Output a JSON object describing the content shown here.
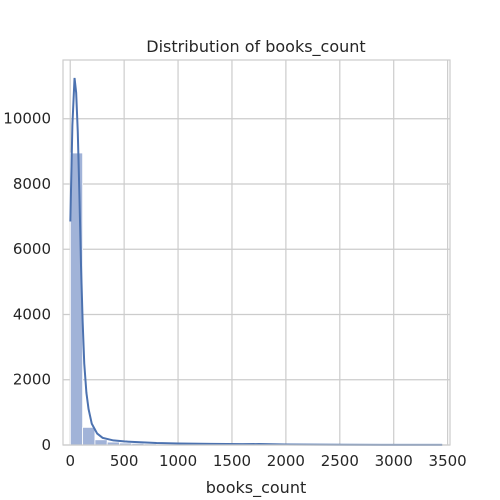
{
  "chart_data": {
    "type": "bar",
    "title": "Distribution of books_count",
    "xlabel": "books_count",
    "ylabel": "",
    "xlim": [
      -67,
      3522
    ],
    "ylim": [
      0,
      11800
    ],
    "xticks": [
      0,
      500,
      1000,
      1500,
      2000,
      2500,
      3000,
      3500
    ],
    "yticks": [
      0,
      2000,
      4000,
      6000,
      8000,
      10000
    ],
    "grid": true,
    "bin_width": 114,
    "bins": [
      {
        "x0": 1,
        "count": 8950
      },
      {
        "x0": 115,
        "count": 540
      },
      {
        "x0": 229,
        "count": 160
      },
      {
        "x0": 343,
        "count": 90
      },
      {
        "x0": 457,
        "count": 60
      },
      {
        "x0": 571,
        "count": 50
      },
      {
        "x0": 685,
        "count": 35
      },
      {
        "x0": 799,
        "count": 25
      },
      {
        "x0": 913,
        "count": 20
      },
      {
        "x0": 1027,
        "count": 15
      },
      {
        "x0": 1141,
        "count": 15
      },
      {
        "x0": 1255,
        "count": 12
      },
      {
        "x0": 1369,
        "count": 10
      },
      {
        "x0": 1483,
        "count": 8
      },
      {
        "x0": 1597,
        "count": 6
      },
      {
        "x0": 1711,
        "count": 20
      },
      {
        "x0": 1825,
        "count": 8
      },
      {
        "x0": 1939,
        "count": 5
      },
      {
        "x0": 2053,
        "count": 4
      },
      {
        "x0": 2167,
        "count": 3
      },
      {
        "x0": 2281,
        "count": 3
      },
      {
        "x0": 2395,
        "count": 2
      },
      {
        "x0": 2509,
        "count": 2
      },
      {
        "x0": 2623,
        "count": 2
      },
      {
        "x0": 2737,
        "count": 1
      },
      {
        "x0": 2851,
        "count": 1
      },
      {
        "x0": 2965,
        "count": 1
      },
      {
        "x0": 3079,
        "count": 1
      },
      {
        "x0": 3193,
        "count": 1
      },
      {
        "x0": 3307,
        "count": 1
      }
    ],
    "kde": {
      "x": [
        1,
        20,
        40,
        55,
        70,
        85,
        100,
        115,
        130,
        150,
        170,
        200,
        250,
        300,
        400,
        500,
        600,
        800,
        1000,
        1300,
        1600,
        1750,
        2000,
        2500,
        3000,
        3450
      ],
      "y": [
        6850,
        9800,
        11250,
        10800,
        9600,
        7700,
        5500,
        3800,
        2500,
        1600,
        1100,
        650,
        350,
        220,
        140,
        110,
        90,
        60,
        45,
        35,
        25,
        30,
        15,
        8,
        5,
        3
      ]
    },
    "colors": {
      "bar_fill": "#a1b3d8",
      "bar_edge": "#ffffff",
      "kde_line": "#4c72b0",
      "grid": "#cccccc",
      "text": "#262626"
    }
  }
}
